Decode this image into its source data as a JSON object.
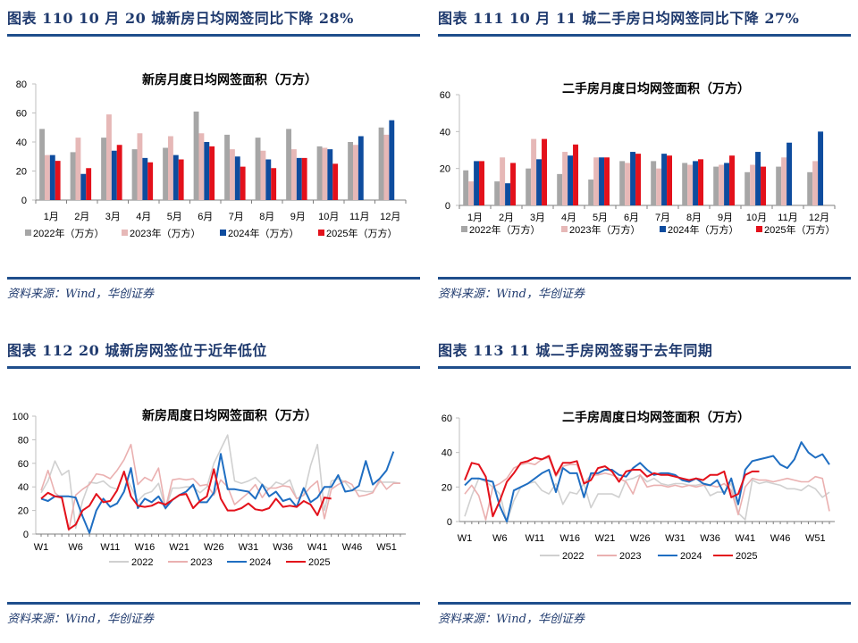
{
  "figures": [
    {
      "id": "110",
      "title": "图表  110    10 月 20 城新房日均网签同比下降 28%",
      "source": "资料来源：Wind，华创证券"
    },
    {
      "id": "111",
      "title": "图表  111    10 月 11 城二手房日均网签同比下降 27%",
      "source": "资料来源：Wind，华创证券"
    },
    {
      "id": "112",
      "title": "图表  112    20 城新房网签位于近年低位",
      "source": "资料来源：Wind，华创证券"
    },
    {
      "id": "113",
      "title": "图表  113    11 城二手房网签弱于去年同期",
      "source": "资料来源：Wind，华创证券"
    }
  ],
  "colors": {
    "2022": "#a6a6a6",
    "2023": "#e6b8b7",
    "2024": "#0e4c9e",
    "2025": "#e3111b",
    "line2022": "#d0d0d0",
    "line2023": "#eab0b0",
    "line2024": "#1f6ec2",
    "line2025": "#e3111b",
    "rule": "#1f4e8c"
  },
  "chart_data": [
    {
      "type": "bar",
      "title": "新房月度日均网签面积（万方）",
      "categories": [
        "1月",
        "2月",
        "3月",
        "4月",
        "5月",
        "6月",
        "7月",
        "8月",
        "9月",
        "10月",
        "11月",
        "12月"
      ],
      "series": [
        {
          "name": "2022年（万方）",
          "values": [
            49,
            33,
            43,
            35,
            36,
            61,
            45,
            43,
            49,
            37,
            40,
            50
          ]
        },
        {
          "name": "2023年（万方）",
          "values": [
            31,
            43,
            59,
            46,
            44,
            46,
            35,
            34,
            35,
            36,
            38,
            45
          ]
        },
        {
          "name": "2024年（万方）",
          "values": [
            31,
            18,
            34,
            29,
            31,
            40,
            30,
            28,
            29,
            35,
            44,
            55
          ]
        },
        {
          "name": "2025年（万方）",
          "values": [
            27,
            22,
            38,
            26,
            28,
            37,
            23,
            22,
            29,
            25,
            null,
            null
          ]
        }
      ],
      "yticks": [
        0,
        20,
        40,
        60,
        80
      ],
      "ylim": [
        0,
        80
      ],
      "xlabel": "",
      "ylabel": "",
      "legend_position": "bottom",
      "grid": false
    },
    {
      "type": "bar",
      "title": "二手房月度日均网签面积（万方）",
      "categories": [
        "1月",
        "2月",
        "3月",
        "4月",
        "5月",
        "6月",
        "7月",
        "8月",
        "9月",
        "10月",
        "11月",
        "12月"
      ],
      "series": [
        {
          "name": "2022年（万方）",
          "values": [
            19,
            13,
            20,
            17,
            14,
            24,
            24,
            23,
            21,
            18,
            21,
            18
          ]
        },
        {
          "name": "2023年（万方）",
          "values": [
            13,
            26,
            36,
            29,
            26,
            23,
            20,
            22,
            22,
            22,
            26,
            24
          ]
        },
        {
          "name": "2024年（万方）",
          "values": [
            24,
            12,
            25,
            27,
            26,
            29,
            28,
            24,
            23,
            29,
            34,
            40
          ]
        },
        {
          "name": "2025年（万方）",
          "values": [
            24,
            23,
            36,
            33,
            26,
            28,
            27,
            25,
            27,
            21,
            null,
            null
          ]
        }
      ],
      "yticks": [
        0,
        20,
        40,
        60
      ],
      "ylim": [
        0,
        60
      ],
      "xlabel": "",
      "ylabel": "",
      "legend_position": "bottom",
      "grid": false
    },
    {
      "type": "line",
      "title": "新房周度日均网签面积（万方）",
      "x_ticks": [
        "W1",
        "W6",
        "W11",
        "W16",
        "W21",
        "W26",
        "W31",
        "W36",
        "W41",
        "W46",
        "W51"
      ],
      "weeks": 53,
      "series": [
        {
          "name": "2022",
          "values": [
            35,
            45,
            62,
            50,
            54,
            5,
            28,
            44,
            43,
            45,
            40,
            38,
            52,
            40,
            28,
            34,
            36,
            43,
            21,
            39,
            39,
            40,
            40,
            35,
            40,
            60,
            72,
            84,
            45,
            43,
            45,
            48,
            42,
            38,
            44,
            42,
            46,
            30,
            33,
            58,
            76,
            20,
            45,
            47,
            44,
            37,
            37,
            36,
            36,
            44,
            44,
            44,
            43
          ]
        },
        {
          "name": "2023",
          "values": [
            37,
            54,
            35,
            30,
            3,
            33,
            38,
            42,
            51,
            50,
            47,
            54,
            63,
            76,
            42,
            48,
            45,
            56,
            22,
            46,
            47,
            46,
            47,
            41,
            42,
            33,
            46,
            40,
            25,
            30,
            35,
            42,
            31,
            39,
            39,
            41,
            40,
            30,
            33,
            40,
            45,
            13,
            38,
            42,
            45,
            42,
            32,
            33,
            35,
            46,
            38,
            43,
            43
          ]
        },
        {
          "name": "2024",
          "values": [
            30,
            28,
            32,
            32,
            32,
            31,
            15,
            1,
            20,
            30,
            23,
            26,
            36,
            56,
            22,
            30,
            27,
            32,
            22,
            29,
            33,
            36,
            42,
            27,
            27,
            35,
            68,
            38,
            38,
            37,
            36,
            30,
            42,
            32,
            36,
            28,
            30,
            23,
            39,
            27,
            31,
            40,
            40,
            50,
            36,
            37,
            41,
            62,
            42,
            47,
            54,
            70
          ]
        },
        {
          "name": "2025",
          "values": [
            30,
            35,
            32,
            31,
            4,
            8,
            20,
            24,
            34,
            27,
            28,
            37,
            53,
            32,
            24,
            23,
            24,
            27,
            25,
            29,
            33,
            34,
            22,
            28,
            32,
            55,
            30,
            20,
            20,
            22,
            26,
            21,
            20,
            22,
            30,
            23,
            24,
            23,
            28,
            25,
            16,
            31,
            30
          ]
        }
      ],
      "yticks": [
        0,
        20,
        40,
        60,
        80,
        100
      ],
      "ylim": [
        0,
        100
      ],
      "legend_position": "bottom",
      "grid": false
    },
    {
      "type": "line",
      "title": "二手房周度日均网签面积（万方）",
      "x_ticks": [
        "W1",
        "W6",
        "W11",
        "W16",
        "W21",
        "W26",
        "W31",
        "W36",
        "W41",
        "W46",
        "W51"
      ],
      "weeks": 53,
      "series": [
        {
          "name": "2022",
          "values": [
            3,
            15,
            25,
            23,
            20,
            16,
            0,
            12,
            20,
            22,
            23,
            18,
            16,
            22,
            10,
            17,
            16,
            22,
            8,
            16,
            16,
            16,
            14,
            24,
            25,
            27,
            23,
            25,
            22,
            21,
            22,
            22,
            21,
            21,
            22,
            15,
            17,
            17,
            22,
            5,
            1,
            24,
            22,
            23,
            22,
            21,
            19,
            19,
            18,
            21,
            19,
            14,
            17
          ]
        },
        {
          "name": "2023",
          "values": [
            16,
            21,
            15,
            1,
            20,
            22,
            25,
            31,
            33,
            34,
            33,
            36,
            37,
            26,
            32,
            33,
            33,
            22,
            27,
            27,
            28,
            27,
            25,
            23,
            16,
            27,
            20,
            21,
            21,
            20,
            21,
            20,
            21,
            20,
            21,
            21,
            20,
            22,
            18,
            4,
            20,
            25,
            24,
            24,
            23,
            24,
            25,
            24,
            23,
            23,
            26,
            25,
            6
          ]
        },
        {
          "name": "2024",
          "values": [
            21,
            25,
            25,
            24,
            23,
            9,
            0,
            18,
            20,
            22,
            25,
            28,
            30,
            17,
            31,
            28,
            28,
            14,
            28,
            28,
            30,
            30,
            27,
            26,
            31,
            34,
            30,
            27,
            28,
            28,
            27,
            24,
            23,
            25,
            22,
            21,
            24,
            16,
            25,
            10,
            30,
            35,
            36,
            37,
            38,
            33,
            31,
            36,
            46,
            40,
            37,
            39,
            33
          ]
        },
        {
          "name": "2025",
          "values": [
            24,
            34,
            33,
            26,
            3,
            12,
            23,
            28,
            34,
            35,
            37,
            36,
            38,
            27,
            34,
            34,
            35,
            22,
            24,
            31,
            32,
            29,
            23,
            29,
            30,
            30,
            26,
            28,
            27,
            27,
            26,
            25,
            24,
            25,
            24,
            27,
            27,
            29,
            14,
            16,
            27,
            29,
            29
          ]
        }
      ],
      "yticks": [
        0,
        20,
        40,
        60
      ],
      "ylim": [
        0,
        60
      ],
      "legend_position": "bottom",
      "grid": false
    }
  ]
}
